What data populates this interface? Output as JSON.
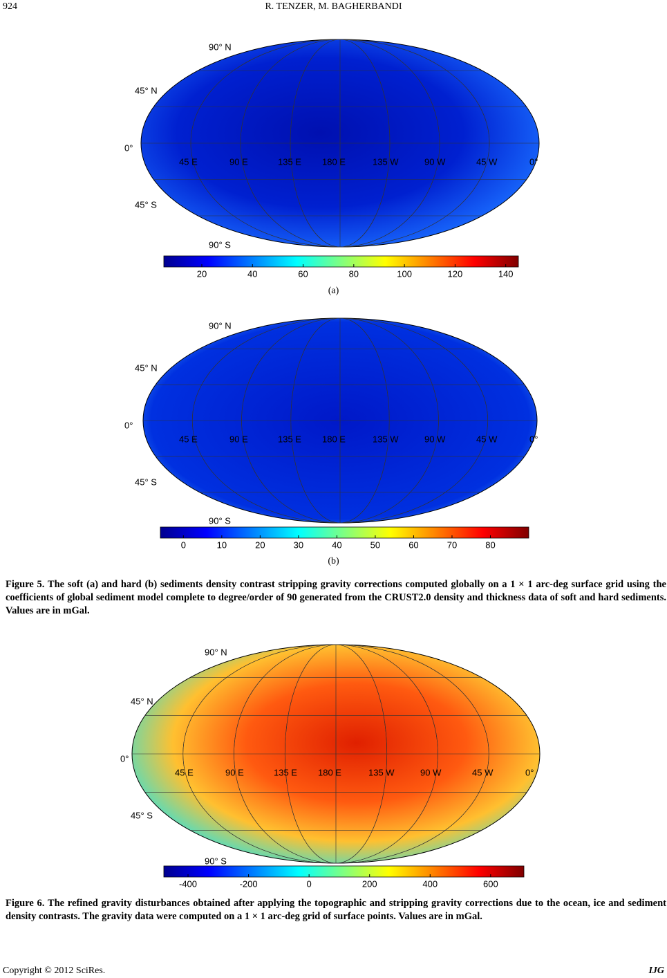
{
  "header": {
    "page_number": "924",
    "authors": "R. TENZER, M. BAGHERBANDI"
  },
  "figures": [
    {
      "label": "(a)",
      "map_labels": {
        "lat": [
          "90° N",
          "45° N",
          "0°",
          "45° S",
          "90° S"
        ],
        "lon": [
          "45 E",
          "90 E",
          "135 E",
          "180 E",
          "135 W",
          "90 W",
          "45 W",
          "0°"
        ]
      },
      "colorbar": {
        "clim": [
          5,
          145
        ],
        "ticks": [
          20,
          40,
          60,
          80,
          100,
          120,
          140
        ]
      }
    },
    {
      "label": "(b)",
      "map_labels": {
        "lat": [
          "90° N",
          "45° N",
          "0°",
          "45° S",
          "90° S"
        ],
        "lon": [
          "45 E",
          "90 E",
          "135 E",
          "180 E",
          "135 W",
          "90 W",
          "45 W",
          "0°"
        ]
      },
      "colorbar": {
        "clim": [
          -6,
          90
        ],
        "ticks": [
          0,
          10,
          20,
          30,
          40,
          50,
          60,
          70,
          80
        ]
      }
    },
    {
      "map_labels": {
        "lat": [
          "90° N",
          "45° N",
          "0°",
          "45° S",
          "90° S"
        ],
        "lon": [
          "45 E",
          "90 E",
          "135 E",
          "180 E",
          "135 W",
          "90 W",
          "45 W",
          "0°"
        ]
      },
      "colorbar": {
        "clim": [
          -480,
          710
        ],
        "ticks": [
          -400,
          -200,
          0,
          200,
          400,
          600
        ]
      }
    }
  ],
  "captions": [
    "Figure 5. The soft (a) and hard (b) sediments density contrast stripping gravity corrections computed globally on a 1 × 1 arc-deg surface grid using the coefficients of global sediment model complete to degree/order of 90 generated from the CRUST2.0 density and thickness data of soft and hard sediments. Values are in mGal.",
    "Figure 6. The refined gravity disturbances obtained after applying the topographic and stripping gravity corrections due to the ocean, ice and sediment density contrasts. The gravity data were computed on a 1 × 1 arc-deg grid of surface points. Values are in mGal."
  ],
  "footer": {
    "copyright": "Copyright © 2012 SciRes.",
    "journal": "IJG"
  }
}
